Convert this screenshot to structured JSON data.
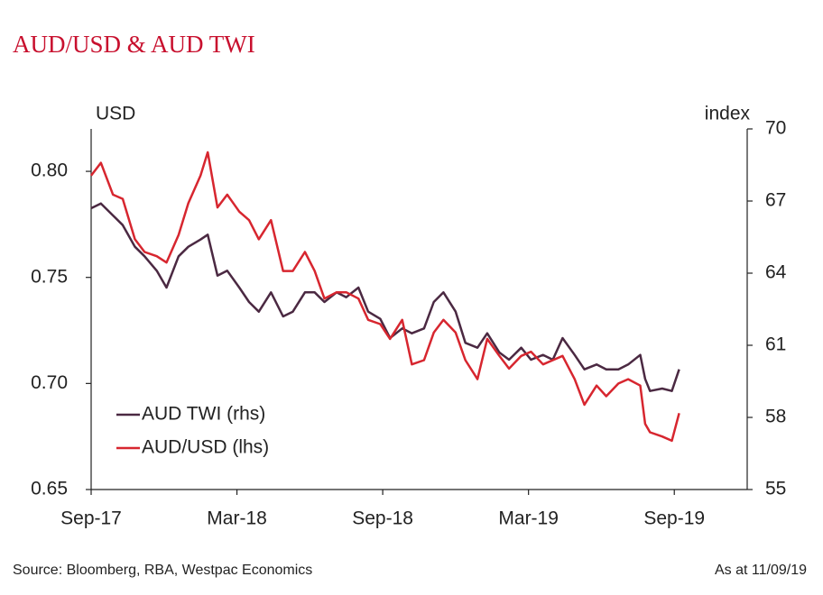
{
  "chart_data": {
    "type": "line",
    "title": "AUD/USD & AUD TWI",
    "y_label": "USD",
    "y2_label": "index",
    "source": "Source:  Bloomberg, RBA, Westpac Economics",
    "note": "As at 11/09/19",
    "x": [
      0,
      0.4,
      0.9,
      1.3,
      1.8,
      2.2,
      2.7,
      3.1,
      3.6,
      4.0,
      4.5,
      4.8,
      5.2,
      5.6,
      6.1,
      6.5,
      6.9,
      7.4,
      7.9,
      8.3,
      8.8,
      9.2,
      9.6,
      10.1,
      10.5,
      11.0,
      11.4,
      11.9,
      12.3,
      12.8,
      13.2,
      13.7,
      14.1,
      14.5,
      15.0,
      15.4,
      15.9,
      16.3,
      16.8,
      17.2,
      17.7,
      18.1,
      18.6,
      19.0,
      19.4,
      19.9,
      20.3,
      20.8,
      21.2,
      21.7,
      22.1,
      22.6,
      22.8,
      23.0,
      23.5,
      23.9,
      24.2
    ],
    "xlim": [
      0,
      27
    ],
    "xticks": [
      {
        "value": 0,
        "label": "Sep-17"
      },
      {
        "value": 6,
        "label": "Mar-18"
      },
      {
        "value": 12,
        "label": "Sep-18"
      },
      {
        "value": 18,
        "label": "Mar-19"
      },
      {
        "value": 24,
        "label": "Sep-19"
      }
    ],
    "ylim": [
      0.65,
      0.82
    ],
    "yticks": [
      {
        "value": 0.65,
        "label": "0.65"
      },
      {
        "value": 0.7,
        "label": "0.70"
      },
      {
        "value": 0.75,
        "label": "0.75"
      },
      {
        "value": 0.8,
        "label": "0.80"
      }
    ],
    "y2lim": [
      55,
      70
    ],
    "y2ticks": [
      55,
      58,
      61,
      64,
      67,
      70
    ],
    "legend": "lower-left",
    "series": [
      {
        "name": "AUD TWI (rhs)",
        "color": "#4b2942",
        "axis": "y2",
        "values": [
          66.7,
          66.9,
          66.4,
          66.0,
          65.1,
          64.7,
          64.1,
          63.4,
          64.7,
          65.1,
          65.4,
          65.6,
          63.9,
          64.1,
          63.4,
          62.8,
          62.4,
          63.2,
          62.2,
          62.4,
          63.2,
          63.2,
          62.8,
          63.2,
          63.0,
          63.4,
          62.4,
          62.1,
          61.3,
          61.7,
          61.5,
          61.7,
          62.8,
          63.2,
          62.4,
          61.1,
          60.9,
          61.5,
          60.7,
          60.4,
          60.9,
          60.4,
          60.6,
          60.4,
          61.3,
          60.6,
          60.0,
          60.2,
          60.0,
          60.0,
          60.2,
          60.6,
          59.6,
          59.1,
          59.2,
          59.1,
          60.0
        ]
      },
      {
        "name": "AUD/USD (lhs)",
        "color": "#d7262f",
        "values": [
          0.798,
          0.804,
          0.789,
          0.787,
          0.768,
          0.762,
          0.76,
          0.757,
          0.77,
          0.785,
          0.798,
          0.809,
          0.783,
          0.789,
          0.781,
          0.777,
          0.768,
          0.777,
          0.753,
          0.753,
          0.762,
          0.753,
          0.74,
          0.743,
          0.743,
          0.74,
          0.73,
          0.728,
          0.721,
          0.73,
          0.709,
          0.711,
          0.724,
          0.73,
          0.724,
          0.711,
          0.702,
          0.721,
          0.713,
          0.707,
          0.713,
          0.715,
          0.709,
          0.711,
          0.713,
          0.702,
          0.69,
          0.699,
          0.694,
          0.7,
          0.702,
          0.699,
          0.681,
          0.677,
          0.675,
          0.673,
          0.686
        ]
      }
    ]
  }
}
